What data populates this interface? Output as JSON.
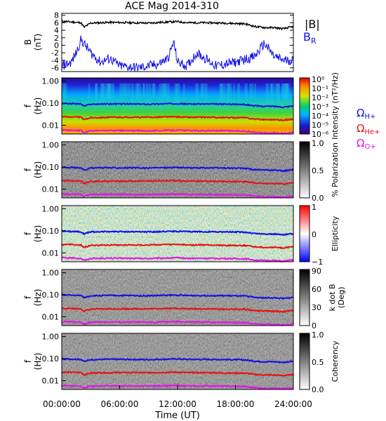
{
  "title": "ACE Mag 2014-310",
  "x_axis": {
    "label": "Time (UT)",
    "ticks": [
      "00:00:00",
      "06:00:00",
      "12:00:00",
      "18:00:00",
      "24:00:00"
    ],
    "range_hours": [
      0,
      24
    ]
  },
  "colors": {
    "black": "#000000",
    "blue": "#1010e8",
    "red": "#e81010",
    "magenta": "#e810e8"
  },
  "chart_data": [
    {
      "type": "line",
      "panel": "field",
      "ylabel_top": "B",
      "ylabel_bottom": "(nT)",
      "ylim": [
        -7,
        8.5
      ],
      "yticks": [
        8,
        6,
        4,
        2,
        0,
        -2,
        -4,
        -6
      ],
      "x_unit": "hours",
      "series": [
        {
          "name": "|B|",
          "color": "#000000",
          "x": [
            0,
            1,
            2,
            2.3,
            3,
            5,
            7,
            9,
            11,
            12,
            13,
            15,
            17,
            19,
            20,
            21,
            22,
            23,
            24
          ],
          "y": [
            6.4,
            6.2,
            6.0,
            4.8,
            5.9,
            6.1,
            6.0,
            5.9,
            6.2,
            6.3,
            6.0,
            6.0,
            5.9,
            5.7,
            5.0,
            4.7,
            4.7,
            4.4,
            5.0
          ]
        },
        {
          "name": "B",
          "sub": "R",
          "color": "#1010e8",
          "x": [
            0,
            1,
            1.5,
            2,
            3,
            4,
            5,
            6,
            8,
            10,
            11,
            11.6,
            12,
            13,
            14,
            16,
            18,
            20,
            21,
            22,
            23,
            24
          ],
          "y": [
            -5.5,
            -4.5,
            -2.0,
            1.5,
            -2.0,
            -4.5,
            -3.5,
            -5.5,
            -6.0,
            -5.0,
            -3.5,
            0.8,
            -4.5,
            -5.5,
            -2.0,
            -5.5,
            -4.5,
            -3.0,
            0.5,
            -3.0,
            -4.0,
            -4.0
          ]
        }
      ]
    },
    {
      "type": "heatmap",
      "panel": "intensity",
      "ylabel_top": "f",
      "ylabel_bottom": "(Hz)",
      "yscale": "log",
      "ylim": [
        0.004,
        1.4
      ],
      "yticks": [
        "1.00",
        "0.10",
        "0.01"
      ],
      "colorbar": {
        "label": "Intensity (nT²/Hz)",
        "ticks": [
          "10⁰",
          "10⁻¹",
          "10⁻²",
          "10⁻³",
          "10⁻⁴",
          "10⁻⁵",
          "10⁻⁶"
        ],
        "scale": "rainbow"
      },
      "legend": [
        {
          "label": "Ω",
          "sub": "H+",
          "color": "#1010e8"
        },
        {
          "label": "Ω",
          "sub": "He+",
          "color": "#e81010"
        },
        {
          "label": "Ω",
          "sub": "O+",
          "color": "#e810e8"
        }
      ]
    },
    {
      "type": "heatmap",
      "panel": "polarization",
      "ylabel_top": "f",
      "ylabel_bottom": "(Hz)",
      "yscale": "log",
      "ylim": [
        0.004,
        1.4
      ],
      "yticks": [
        "1.00",
        "0.10",
        "0.01"
      ],
      "colorbar": {
        "label": "% Polarization",
        "ticks": [
          "1.0",
          "0.5",
          "0.0"
        ],
        "scale": "gray-inverted"
      }
    },
    {
      "type": "heatmap",
      "panel": "ellipticity",
      "ylabel_top": "f",
      "ylabel_bottom": "(Hz)",
      "yscale": "log",
      "ylim": [
        0.004,
        1.4
      ],
      "yticks": [
        "1.00",
        "0.10",
        "0.01"
      ],
      "colorbar": {
        "label": "Ellipticity",
        "ticks": [
          "1",
          "0",
          "−1"
        ],
        "scale": "blue-white-red"
      }
    },
    {
      "type": "heatmap",
      "panel": "kdotb",
      "ylabel_top": "f",
      "ylabel_bottom": "(Hz)",
      "yscale": "log",
      "ylim": [
        0.004,
        1.4
      ],
      "yticks": [
        "1.00",
        "0.10",
        "0.01"
      ],
      "colorbar": {
        "label_top": "k dot B",
        "label_bottom": "(Deg)",
        "ticks": [
          "90",
          "60",
          "30",
          "0"
        ],
        "scale": "gray-inverted"
      }
    },
    {
      "type": "heatmap",
      "panel": "coherency",
      "ylabel_top": "f",
      "ylabel_bottom": "(Hz)",
      "yscale": "log",
      "ylim": [
        0.004,
        1.4
      ],
      "yticks": [
        "1.00",
        "0.10",
        "0.01"
      ],
      "colorbar": {
        "label": "Coherency",
        "ticks": [
          "1.0",
          "0.5",
          "0.0"
        ],
        "scale": "gray-inverted"
      }
    }
  ],
  "gyrofrequencies": {
    "x_unit": "hours",
    "x": [
      0,
      1,
      2,
      2.3,
      3,
      5,
      7,
      9,
      11,
      12,
      13,
      15,
      17,
      19,
      20,
      21,
      22,
      23,
      24
    ],
    "H+": [
      0.098,
      0.095,
      0.092,
      0.073,
      0.09,
      0.093,
      0.092,
      0.09,
      0.095,
      0.096,
      0.092,
      0.092,
      0.09,
      0.087,
      0.076,
      0.072,
      0.072,
      0.067,
      0.076
    ],
    "He+": [
      0.024,
      0.024,
      0.023,
      0.018,
      0.022,
      0.023,
      0.023,
      0.023,
      0.024,
      0.024,
      0.023,
      0.023,
      0.022,
      0.022,
      0.019,
      0.018,
      0.018,
      0.017,
      0.019
    ],
    "O+": [
      0.0061,
      0.0059,
      0.0057,
      0.0046,
      0.0056,
      0.0058,
      0.0057,
      0.0056,
      0.0059,
      0.006,
      0.0057,
      0.0057,
      0.0056,
      0.0054,
      0.0048,
      0.0045,
      0.0045,
      0.0042,
      0.0048
    ]
  }
}
